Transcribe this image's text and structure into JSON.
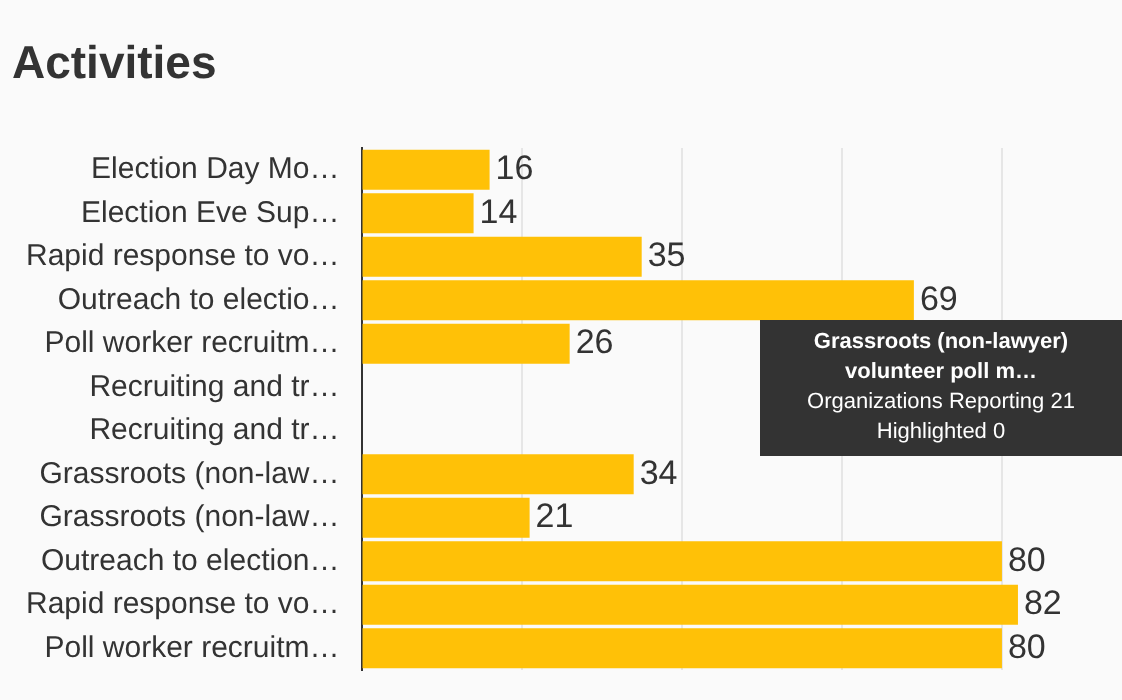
{
  "chart_data": {
    "type": "bar",
    "orientation": "horizontal",
    "title": "Activities",
    "categories": [
      "Election Day Mo…",
      "Election Eve Sup…",
      "Rapid response to vo…",
      "Outreach to electio…",
      "Poll worker recruitm…",
      "Recruiting and tr…",
      "Recruiting and tr…",
      "Grassroots (non-law…",
      "Grassroots (non-law…",
      "Outreach to election…",
      "Rapid response to vo…",
      "Poll worker recruitm…"
    ],
    "values": [
      16,
      14,
      35,
      69,
      26,
      null,
      null,
      34,
      21,
      80,
      82,
      80
    ],
    "color": "#ffc107",
    "xticks": [
      {
        "value": 0,
        "label": null
      },
      {
        "value": 20,
        "label": null
      },
      {
        "value": 40,
        "label": null
      },
      {
        "value": 60,
        "label": null
      },
      {
        "value": 80,
        "label": null
      }
    ],
    "grid": "x",
    "tick_labels": "y",
    "data_labels": true,
    "annotations": [
      "Grassroots (non-lawyer) volunteer poll m…",
      "Organizations Reporting 21",
      "Highlighted 0"
    ]
  }
}
